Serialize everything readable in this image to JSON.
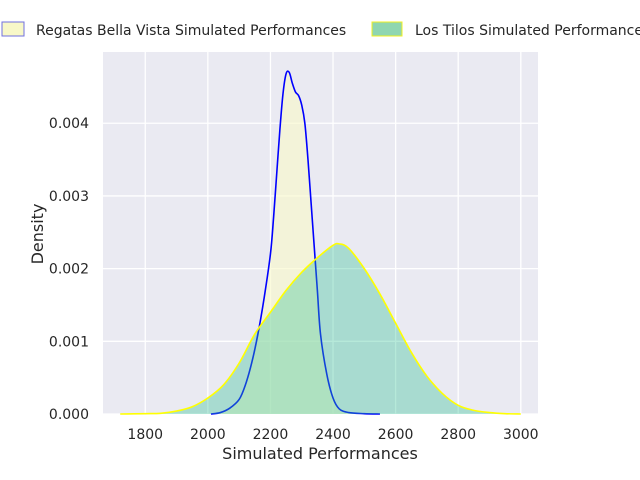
{
  "chart_data": {
    "type": "area",
    "xlabel": "Simulated Performances",
    "ylabel": "Density",
    "xlim": [
      1665,
      3055
    ],
    "ylim": [
      0,
      0.00498
    ],
    "x_ticks": [
      1800,
      2000,
      2200,
      2400,
      2600,
      2800,
      3000
    ],
    "x_tick_labels": [
      "1800",
      "2000",
      "2200",
      "2400",
      "2600",
      "2800",
      "3000"
    ],
    "y_ticks": [
      0,
      0.001,
      0.002,
      0.003,
      0.004
    ],
    "y_tick_labels": [
      "0.000",
      "0.001",
      "0.002",
      "0.003",
      "0.004"
    ],
    "grid": true,
    "legend_placement": "top",
    "plot_background": "#eaeaf2",
    "series": [
      {
        "name": "Regatas Bella Vista Simulated Performances",
        "fill": "#f8f8c8",
        "fill_opacity": 0.6,
        "line": "#0000ff",
        "x": [
          2010,
          2040,
          2070,
          2100,
          2120,
          2140,
          2160,
          2180,
          2200,
          2210,
          2220,
          2230,
          2240,
          2250,
          2260,
          2270,
          2280,
          2290,
          2300,
          2310,
          2320,
          2330,
          2340,
          2350,
          2360,
          2380,
          2400,
          2420,
          2450,
          2500,
          2550
        ],
        "y": [
          0,
          2e-05,
          8e-05,
          0.0002,
          0.0004,
          0.0007,
          0.0011,
          0.0016,
          0.0022,
          0.0027,
          0.0033,
          0.0039,
          0.0044,
          0.00468,
          0.0047,
          0.00455,
          0.00443,
          0.00438,
          0.00425,
          0.004,
          0.0035,
          0.0029,
          0.0023,
          0.0017,
          0.0011,
          0.00055,
          0.00022,
          7e-05,
          2e-05,
          5e-06,
          0
        ]
      },
      {
        "name": "Los Tilos Simulated Performances",
        "fill": "#2ebf91",
        "fill_opacity": 0.35,
        "line": "#ffff00",
        "x": [
          1720,
          1800,
          1850,
          1900,
          1950,
          2000,
          2050,
          2100,
          2150,
          2200,
          2250,
          2300,
          2350,
          2400,
          2420,
          2450,
          2500,
          2550,
          2600,
          2650,
          2700,
          2750,
          2800,
          2850,
          2900,
          2950,
          3000
        ],
        "y": [
          0,
          5e-06,
          1e-05,
          4e-05,
          0.0001,
          0.00022,
          0.0004,
          0.0007,
          0.0011,
          0.0014,
          0.0017,
          0.00195,
          0.00215,
          0.00232,
          0.00234,
          0.00228,
          0.002,
          0.00165,
          0.00125,
          0.00085,
          0.00052,
          0.00028,
          0.00012,
          5e-05,
          2e-05,
          5e-06,
          0
        ]
      }
    ]
  }
}
